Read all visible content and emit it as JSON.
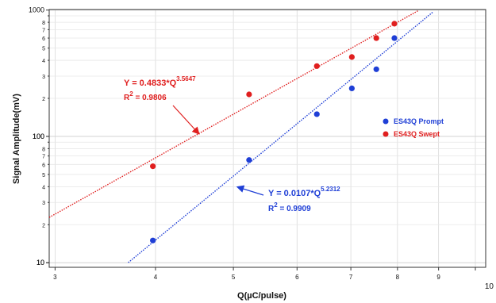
{
  "chart_data": {
    "type": "scatter",
    "xlabel": "Q(µC/pulse)",
    "ylabel": "Signal Amplitude(mV)",
    "xscale": "log",
    "yscale": "log",
    "xlim": [
      2.95,
      10.3
    ],
    "ylim": [
      9.2,
      1010
    ],
    "grid": true,
    "legend_position": "right",
    "x_ticks": [
      3,
      4,
      5,
      6,
      7,
      8,
      9,
      10
    ],
    "x_tick_labels": [
      "3",
      "4",
      "5",
      "6",
      "7",
      "8",
      "9",
      "10"
    ],
    "y_major_ticks": [
      10,
      100,
      1000
    ],
    "y_major_labels": [
      "10",
      "100",
      "1000"
    ],
    "y_minor_ticks": [
      2,
      3,
      4,
      5,
      6,
      7,
      8
    ],
    "series": [
      {
        "name": "ES43Q Prompt",
        "color": "#1f3fd6",
        "x": [
          3.97,
          5.23,
          6.35,
          7.02,
          7.53,
          7.93
        ],
        "y": [
          15,
          65,
          150,
          240,
          340,
          600
        ],
        "fit": {
          "equation_lhs": "Y = 0.0107*Q",
          "exponent": "5.2312",
          "r2_label": "R",
          "r2_sup": "2",
          "r2_value": " = 0.9909",
          "a": 0.0107,
          "b": 5.2312,
          "x_range": [
            3.7,
            9.0
          ]
        }
      },
      {
        "name": "ES43Q Swept",
        "color": "#e01f1f",
        "x": [
          3.97,
          5.23,
          6.35,
          7.02,
          7.53,
          7.93
        ],
        "y": [
          58,
          215,
          360,
          425,
          600,
          780
        ],
        "fit": {
          "equation_lhs": "Y = 0.4833*Q",
          "exponent": "3.5647",
          "r2_label": "R",
          "r2_sup": "2",
          "r2_value": " = 0.9806",
          "a": 0.4833,
          "b": 3.5647,
          "x_range": [
            2.95,
            8.5
          ]
        }
      }
    ]
  }
}
